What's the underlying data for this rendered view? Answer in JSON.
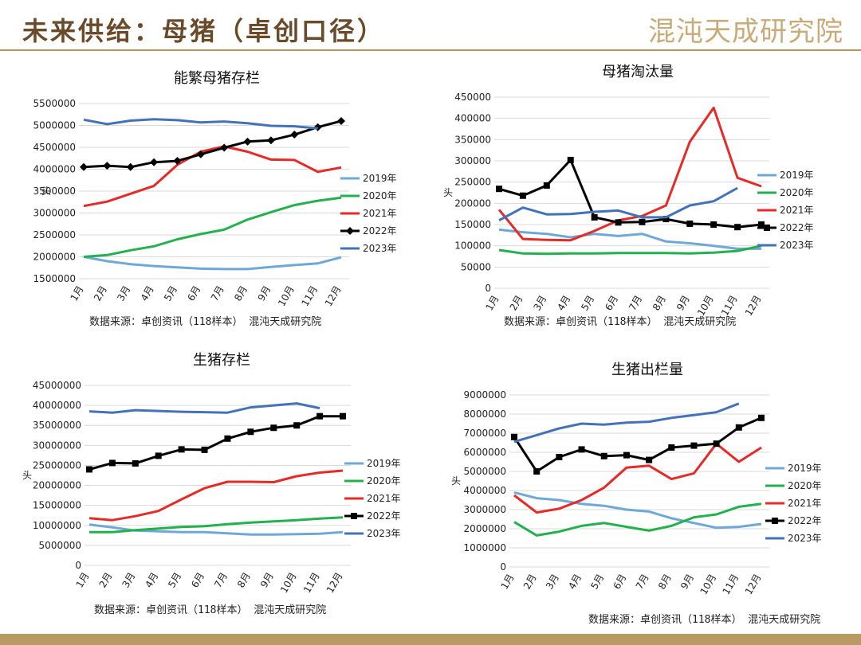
{
  "header": {
    "title": "未来供给：母猪（卓创口径）",
    "brand": "混沌天成研究院"
  },
  "colors": {
    "s2019": "#6fa8d6",
    "s2020": "#22b14c",
    "s2021": "#e62a27",
    "s2022": "#000000",
    "s2023": "#4472b8"
  },
  "chart_data": [
    {
      "type": "line",
      "title": "能繁母猪存栏",
      "ylabel": "头",
      "ylim": [
        1500000,
        5500000
      ],
      "yticks": [
        "1500000",
        "2000000",
        "2500000",
        "3000000",
        "3500000",
        "4000000",
        "4500000",
        "5000000",
        "5500000"
      ],
      "categories": [
        "1月",
        "2月",
        "3月",
        "4月",
        "5月",
        "6月",
        "7月",
        "8月",
        "9月",
        "10月",
        "11月",
        "12月"
      ],
      "series": [
        {
          "name": "2019年",
          "color": "#6fa8d6",
          "marker": "none",
          "values": [
            2000000,
            1900000,
            1830000,
            1790000,
            1760000,
            1730000,
            1720000,
            1720000,
            1770000,
            1810000,
            1850000,
            1990000
          ]
        },
        {
          "name": "2020年",
          "color": "#22b14c",
          "marker": "none",
          "values": [
            2000000,
            2040000,
            2150000,
            2240000,
            2400000,
            2520000,
            2620000,
            2850000,
            3020000,
            3180000,
            3280000,
            3350000
          ]
        },
        {
          "name": "2021年",
          "color": "#e62a27",
          "marker": "none",
          "values": [
            3160000,
            3260000,
            3440000,
            3620000,
            4100000,
            4400000,
            4520000,
            4400000,
            4220000,
            4210000,
            3940000,
            4040000
          ]
        },
        {
          "name": "2022年",
          "color": "#000000",
          "marker": "diamond",
          "values": [
            4050000,
            4080000,
            4050000,
            4160000,
            4190000,
            4340000,
            4490000,
            4630000,
            4660000,
            4790000,
            4960000,
            5100000
          ]
        },
        {
          "name": "2023年",
          "color": "#4472b8",
          "marker": "none",
          "values": [
            5130000,
            5030000,
            5110000,
            5140000,
            5120000,
            5070000,
            5090000,
            5050000,
            4990000,
            4980000,
            4930000,
            null
          ]
        }
      ],
      "legend": "right",
      "source": "数据来源：卓创资讯（118样本） 混沌天成研究院"
    },
    {
      "type": "line",
      "title": "母猪淘汰量",
      "ylabel": "头",
      "ylim": [
        0,
        450000
      ],
      "yticks": [
        "0",
        "50000",
        "100000",
        "150000",
        "200000",
        "250000",
        "300000",
        "350000",
        "400000",
        "450000"
      ],
      "categories": [
        "1月",
        "2月",
        "3月",
        "4月",
        "5月",
        "6月",
        "7月",
        "8月",
        "9月",
        "10月",
        "11月",
        "12月"
      ],
      "series": [
        {
          "name": "2019年",
          "color": "#6fa8d6",
          "marker": "none",
          "values": [
            138000,
            132000,
            128000,
            120000,
            128000,
            123000,
            128000,
            110000,
            106000,
            100000,
            93000,
            93000
          ]
        },
        {
          "name": "2020年",
          "color": "#22b14c",
          "marker": "none",
          "values": [
            90000,
            82000,
            81000,
            82000,
            82000,
            83000,
            83000,
            83000,
            82000,
            84000,
            88000,
            100000
          ]
        },
        {
          "name": "2021年",
          "color": "#e62a27",
          "marker": "none",
          "values": [
            185000,
            116000,
            114000,
            113000,
            135000,
            160000,
            170000,
            195000,
            345000,
            425000,
            260000,
            240000
          ]
        },
        {
          "name": "2022年",
          "color": "#000000",
          "marker": "square",
          "values": [
            234000,
            218000,
            242000,
            302000,
            167000,
            155000,
            156000,
            163000,
            152000,
            150000,
            144000,
            150000
          ]
        },
        {
          "name": "2023年",
          "color": "#4472b8",
          "marker": "none",
          "values": [
            160000,
            190000,
            174000,
            175000,
            180000,
            183000,
            167000,
            167000,
            195000,
            205000,
            236000,
            null
          ]
        }
      ],
      "legend": "right",
      "source": "数据来源：卓创资讯（118样本） 混沌天成研究院"
    },
    {
      "type": "line",
      "title": "生猪存栏",
      "ylabel": "头",
      "ylim": [
        0,
        45000000
      ],
      "yticks": [
        "0",
        "5000000",
        "10000000",
        "15000000",
        "20000000",
        "25000000",
        "30000000",
        "35000000",
        "40000000",
        "45000000"
      ],
      "categories": [
        "1月",
        "2月",
        "3月",
        "4月",
        "5月",
        "6月",
        "7月",
        "8月",
        "9月",
        "10月",
        "11月",
        "12月"
      ],
      "series": [
        {
          "name": "2019年",
          "color": "#6fa8d6",
          "marker": "none",
          "values": [
            10200000,
            9500000,
            8700000,
            8500000,
            8300000,
            8300000,
            8000000,
            7700000,
            7700000,
            7800000,
            7900000,
            8300000
          ]
        },
        {
          "name": "2020年",
          "color": "#22b14c",
          "marker": "none",
          "values": [
            8300000,
            8300000,
            8800000,
            9200000,
            9600000,
            9800000,
            10300000,
            10700000,
            11000000,
            11300000,
            11700000,
            12000000
          ]
        },
        {
          "name": "2021年",
          "color": "#e62a27",
          "marker": "none",
          "values": [
            11800000,
            11300000,
            12300000,
            13600000,
            16500000,
            19300000,
            20900000,
            20900000,
            20800000,
            22300000,
            23200000,
            23700000
          ]
        },
        {
          "name": "2022年",
          "color": "#000000",
          "marker": "square",
          "values": [
            24000000,
            25600000,
            25500000,
            27400000,
            29000000,
            28900000,
            31700000,
            33400000,
            34400000,
            35000000,
            37300000,
            37300000
          ]
        },
        {
          "name": "2023年",
          "color": "#4472b8",
          "marker": "none",
          "values": [
            38500000,
            38200000,
            38800000,
            38600000,
            38400000,
            38300000,
            38200000,
            39500000,
            40000000,
            40500000,
            39300000,
            null
          ]
        }
      ],
      "legend": "right",
      "source": "数据来源：卓创资讯（118样本） 混沌天成研究院"
    },
    {
      "type": "line",
      "title": "生猪出栏量",
      "ylabel": "头",
      "ylim": [
        0,
        9000000
      ],
      "yticks": [
        "0",
        "1000000",
        "2000000",
        "3000000",
        "4000000",
        "5000000",
        "6000000",
        "7000000",
        "8000000",
        "9000000"
      ],
      "categories": [
        "1月",
        "2月",
        "3月",
        "4月",
        "5月",
        "6月",
        "7月",
        "8月",
        "9月",
        "10月",
        "11月",
        "12月"
      ],
      "series": [
        {
          "name": "2019年",
          "color": "#6fa8d6",
          "marker": "none",
          "values": [
            3900000,
            3600000,
            3500000,
            3300000,
            3200000,
            3000000,
            2900000,
            2550000,
            2300000,
            2050000,
            2100000,
            2250000
          ]
        },
        {
          "name": "2020年",
          "color": "#22b14c",
          "marker": "none",
          "values": [
            2350000,
            1650000,
            1850000,
            2150000,
            2300000,
            2100000,
            1900000,
            2150000,
            2600000,
            2750000,
            3150000,
            3300000
          ]
        },
        {
          "name": "2021年",
          "color": "#e62a27",
          "marker": "none",
          "values": [
            3750000,
            2850000,
            3050000,
            3500000,
            4150000,
            5200000,
            5300000,
            4600000,
            4900000,
            6450000,
            5500000,
            6250000
          ]
        },
        {
          "name": "2022年",
          "color": "#000000",
          "marker": "square",
          "values": [
            6800000,
            5000000,
            5750000,
            6150000,
            5800000,
            5850000,
            5600000,
            6250000,
            6350000,
            6450000,
            7300000,
            7800000
          ]
        },
        {
          "name": "2023年",
          "color": "#4472b8",
          "marker": "none",
          "values": [
            6550000,
            6900000,
            7250000,
            7500000,
            7450000,
            7550000,
            7600000,
            7800000,
            7950000,
            8100000,
            8550000,
            null
          ]
        }
      ],
      "legend": "right",
      "source": "数据来源：卓创资讯（118样本） 混沌天成研究院"
    }
  ]
}
